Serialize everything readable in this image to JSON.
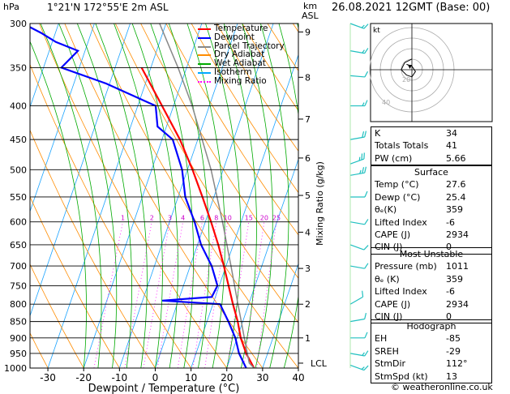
{
  "header": {
    "pressure_unit": "hPa",
    "location": "1°21'N  172°55'E  2m  ASL",
    "height_unit_line1": "km",
    "height_unit_line2": "ASL",
    "datetime": "26.08.2021  12GMT  (Base: 00)"
  },
  "footer": {
    "credit": "© weatheronline.co.uk"
  },
  "legend": [
    {
      "label": "Temperature",
      "color": "#ff0000",
      "style": "solid"
    },
    {
      "label": "Dewpoint",
      "color": "#0000ff",
      "style": "solid"
    },
    {
      "label": "Parcel Trajectory",
      "color": "#888888",
      "style": "solid"
    },
    {
      "label": "Dry Adiabat",
      "color": "#ff8c00",
      "style": "solid"
    },
    {
      "label": "Wet Adiabat",
      "color": "#00aa00",
      "style": "solid"
    },
    {
      "label": "Isotherm",
      "color": "#00aaff",
      "style": "solid"
    },
    {
      "label": "Mixing Ratio",
      "color": "#ff00ff",
      "style": "dotted"
    }
  ],
  "chart_data": {
    "type": "line",
    "title": "",
    "xlabel": "Dewpoint / Temperature (°C)",
    "ylabel": "hPa",
    "y2label": "Mixing Ratio (g/kg)",
    "xlim": [
      -35,
      40
    ],
    "ylim": [
      1000,
      300
    ],
    "y_scale": "log",
    "x_ticks": [
      -30,
      -20,
      -10,
      0,
      10,
      20,
      30,
      40
    ],
    "pressure_levels": [
      300,
      350,
      400,
      450,
      500,
      550,
      600,
      650,
      700,
      750,
      800,
      850,
      900,
      950,
      1000
    ],
    "height_km_ticks": [
      {
        "label": "9",
        "p": 309
      },
      {
        "label": "8",
        "p": 362
      },
      {
        "label": "7",
        "p": 419
      },
      {
        "label": "6",
        "p": 480
      },
      {
        "label": "5",
        "p": 547
      },
      {
        "label": "4",
        "p": 622
      },
      {
        "label": "3",
        "p": 706
      },
      {
        "label": "2",
        "p": 800
      },
      {
        "label": "1",
        "p": 900
      },
      {
        "label": "LCL",
        "p": 983
      }
    ],
    "mixing_ratio_labels": [
      "1",
      "2",
      "3",
      "4",
      "6",
      "8",
      "10",
      "15",
      "20",
      "25"
    ],
    "mixing_ratio_label_p": 600,
    "skew": 33,
    "series": [
      {
        "name": "Temperature",
        "color": "#ff0000",
        "p": [
          1000,
          950,
          900,
          850,
          800,
          750,
          700,
          650,
          600,
          550,
          500,
          450,
          400,
          350
        ],
        "t": [
          27.6,
          24.0,
          21.0,
          18.6,
          15.6,
          12.6,
          9.4,
          5.8,
          1.6,
          -3.2,
          -8.6,
          -15.0,
          -23.2,
          -32.6
        ]
      },
      {
        "name": "Dewpoint",
        "color": "#0000ff",
        "p": [
          1000,
          950,
          900,
          850,
          800,
          790,
          780,
          750,
          700,
          650,
          600,
          550,
          500,
          450,
          430,
          400,
          370,
          350,
          330,
          320,
          310,
          300
        ],
        "t": [
          25.4,
          22.0,
          19.5,
          16.0,
          12.0,
          -4.5,
          9.0,
          9.5,
          6.0,
          1.0,
          -3.0,
          -8.0,
          -11.5,
          -17.0,
          -22.5,
          -25.0,
          -41.0,
          -55.0,
          -52.0,
          -59.0,
          -64.0,
          -70.0
        ]
      },
      {
        "name": "Parcel Trajectory",
        "color": "#888888",
        "p": [
          1000,
          983,
          900,
          850,
          800,
          700,
          600,
          500,
          400,
          350,
          300
        ],
        "t": [
          27.6,
          25.8,
          22.0,
          19.6,
          17.0,
          11.4,
          4.8,
          -3.4,
          -14.8,
          -22.4,
          -31.8
        ]
      }
    ]
  },
  "stability_indices": [
    {
      "label": "K",
      "value": "34"
    },
    {
      "label": "Totals Totals",
      "value": "41"
    },
    {
      "label": "PW (cm)",
      "value": "5.66"
    }
  ],
  "surface": {
    "title": "Surface",
    "rows": [
      {
        "label": "Temp (°C)",
        "value": "27.6"
      },
      {
        "label": "Dewp (°C)",
        "value": "25.4"
      },
      {
        "label": "θₑ(K)",
        "value": "359"
      },
      {
        "label": "Lifted Index",
        "value": "-6"
      },
      {
        "label": "CAPE (J)",
        "value": "2934"
      },
      {
        "label": "CIN (J)",
        "value": "0"
      }
    ]
  },
  "most_unstable": {
    "title": "Most Unstable",
    "rows": [
      {
        "label": "Pressure (mb)",
        "value": "1011"
      },
      {
        "label": "θₑ (K)",
        "value": "359"
      },
      {
        "label": "Lifted Index",
        "value": "-6"
      },
      {
        "label": "CAPE (J)",
        "value": "2934"
      },
      {
        "label": "CIN (J)",
        "value": "0"
      }
    ]
  },
  "hodograph_table": {
    "title": "Hodograph",
    "rows": [
      {
        "label": "EH",
        "value": "-85"
      },
      {
        "label": "SREH",
        "value": "-29"
      },
      {
        "label": "StmDir",
        "value": "112°"
      },
      {
        "label": "StmSpd (kt)",
        "value": "13"
      }
    ]
  },
  "hodograph": {
    "unit_label": "kt",
    "ring_labels": [
      "20",
      "40"
    ],
    "trace_u": [
      0,
      -4,
      -6,
      -3,
      0,
      2,
      0,
      -3
    ],
    "trace_v": [
      6,
      4,
      0,
      -3,
      -4,
      -1,
      2,
      3
    ]
  },
  "wind_barbs": {
    "p": [
      300,
      330,
      360,
      400,
      450,
      490,
      510,
      550,
      600,
      650,
      700,
      800,
      850,
      900,
      950,
      990
    ],
    "dir": [
      110,
      100,
      95,
      90,
      80,
      70,
      80,
      90,
      100,
      110,
      100,
      60,
      80,
      90,
      100,
      110
    ],
    "spd": [
      15,
      15,
      10,
      15,
      20,
      25,
      25,
      10,
      10,
      10,
      10,
      10,
      10,
      10,
      15,
      15
    ]
  }
}
